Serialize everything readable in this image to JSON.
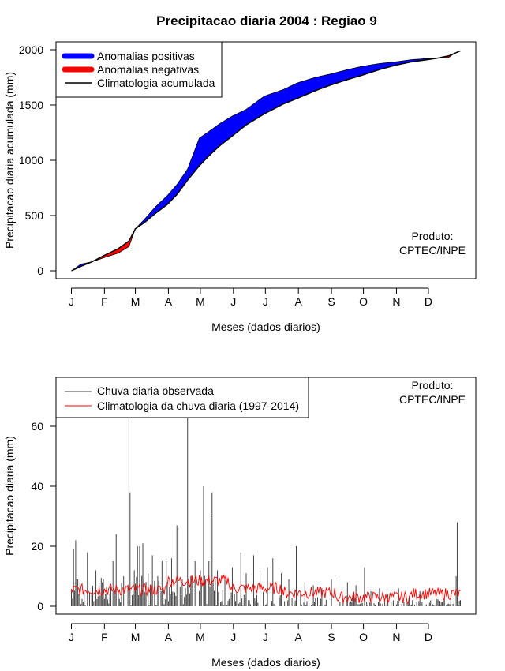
{
  "title": "Precipitacao diaria 2004 : Regiao 9",
  "product": {
    "line1": "Produto:",
    "line2": "CPTEC/INPE"
  },
  "month_labels": [
    "J",
    "F",
    "M",
    "A",
    "M",
    "J",
    "J",
    "A",
    "S",
    "O",
    "N",
    "D"
  ],
  "colors": {
    "positive": "#0000ff",
    "negative": "#ff0000",
    "clim_line": "#000000",
    "obs_bar": "#444444",
    "clim_daily": "#ff0000"
  },
  "chart_data": [
    {
      "type": "area",
      "name": "accumulated",
      "title": "Precipitacao diaria 2004 : Regiao 9",
      "xlabel": "Meses (dados diarios)",
      "ylabel": "Precipitacao diaria acumulada (mm)",
      "xlim": [
        1,
        366
      ],
      "ylim": [
        0,
        2000
      ],
      "yticks": [
        0,
        500,
        1000,
        1500,
        2000
      ],
      "legend": {
        "placement": "top-left",
        "entries": [
          "Anomalias positivas",
          "Anomalias negativas",
          "Climatologia acumulada"
        ]
      },
      "x_days": [
        1,
        10,
        20,
        32,
        45,
        55,
        61,
        70,
        80,
        91,
        100,
        110,
        121,
        130,
        140,
        152,
        165,
        182,
        200,
        213,
        230,
        244,
        260,
        274,
        290,
        305,
        320,
        335,
        345,
        355,
        360,
        366
      ],
      "observed": [
        0,
        60,
        80,
        120,
        160,
        220,
        380,
        470,
        580,
        680,
        780,
        920,
        1200,
        1260,
        1330,
        1400,
        1460,
        1580,
        1640,
        1700,
        1750,
        1780,
        1820,
        1850,
        1875,
        1890,
        1910,
        1920,
        1925,
        1930,
        1965,
        1990
      ],
      "climatology": [
        0,
        40,
        80,
        140,
        200,
        270,
        380,
        440,
        520,
        600,
        690,
        820,
        950,
        1040,
        1130,
        1220,
        1320,
        1420,
        1510,
        1560,
        1630,
        1680,
        1730,
        1770,
        1820,
        1860,
        1890,
        1910,
        1925,
        1945,
        1965,
        1990
      ]
    },
    {
      "type": "bar",
      "name": "daily",
      "xlabel": "Meses (dados diarios)",
      "ylabel": "Precipitacao diaria (mm)",
      "xlim": [
        1,
        366
      ],
      "ylim": [
        0,
        75
      ],
      "yticks": [
        0,
        20,
        40,
        60
      ],
      "legend": {
        "placement": "top-left",
        "entries": [
          "Chuva diaria observada",
          "Climatologia da chuva diaria (1997-2014)"
        ]
      },
      "observed_spikes": [
        {
          "day": 3,
          "value": 19
        },
        {
          "day": 5,
          "value": 22
        },
        {
          "day": 7,
          "value": 9
        },
        {
          "day": 16,
          "value": 18
        },
        {
          "day": 24,
          "value": 12
        },
        {
          "day": 30,
          "value": 8
        },
        {
          "day": 40,
          "value": 15
        },
        {
          "day": 43,
          "value": 24
        },
        {
          "day": 50,
          "value": 10
        },
        {
          "day": 55,
          "value": 75
        },
        {
          "day": 56,
          "value": 38
        },
        {
          "day": 60,
          "value": 12
        },
        {
          "day": 63,
          "value": 20
        },
        {
          "day": 65,
          "value": 20
        },
        {
          "day": 68,
          "value": 21
        },
        {
          "day": 73,
          "value": 11
        },
        {
          "day": 77,
          "value": 17
        },
        {
          "day": 82,
          "value": 10
        },
        {
          "day": 86,
          "value": 15
        },
        {
          "day": 90,
          "value": 15
        },
        {
          "day": 95,
          "value": 16
        },
        {
          "day": 100,
          "value": 27
        },
        {
          "day": 101,
          "value": 26
        },
        {
          "day": 110,
          "value": 75
        },
        {
          "day": 113,
          "value": 10
        },
        {
          "day": 117,
          "value": 15
        },
        {
          "day": 122,
          "value": 12
        },
        {
          "day": 125,
          "value": 40
        },
        {
          "day": 130,
          "value": 15
        },
        {
          "day": 132,
          "value": 30
        },
        {
          "day": 133,
          "value": 38
        },
        {
          "day": 138,
          "value": 12
        },
        {
          "day": 145,
          "value": 9
        },
        {
          "day": 152,
          "value": 13
        },
        {
          "day": 160,
          "value": 18
        },
        {
          "day": 165,
          "value": 11
        },
        {
          "day": 172,
          "value": 17
        },
        {
          "day": 178,
          "value": 12
        },
        {
          "day": 185,
          "value": 13
        },
        {
          "day": 190,
          "value": 16
        },
        {
          "day": 198,
          "value": 11
        },
        {
          "day": 205,
          "value": 9
        },
        {
          "day": 212,
          "value": 20
        },
        {
          "day": 220,
          "value": 8
        },
        {
          "day": 228,
          "value": 7
        },
        {
          "day": 236,
          "value": 6
        },
        {
          "day": 245,
          "value": 9
        },
        {
          "day": 252,
          "value": 10
        },
        {
          "day": 260,
          "value": 8
        },
        {
          "day": 268,
          "value": 7
        },
        {
          "day": 276,
          "value": 13
        },
        {
          "day": 282,
          "value": 5
        },
        {
          "day": 290,
          "value": 6
        },
        {
          "day": 298,
          "value": 4
        },
        {
          "day": 308,
          "value": 6
        },
        {
          "day": 318,
          "value": 3
        },
        {
          "day": 328,
          "value": 5
        },
        {
          "day": 338,
          "value": 2
        },
        {
          "day": 350,
          "value": 3
        },
        {
          "day": 362,
          "value": 10
        },
        {
          "day": 363,
          "value": 28
        }
      ],
      "climatology_daily": {
        "wet_season_mean": 7,
        "dry_season_mean": 3,
        "jan_mar_mean": 5.5
      }
    }
  ]
}
